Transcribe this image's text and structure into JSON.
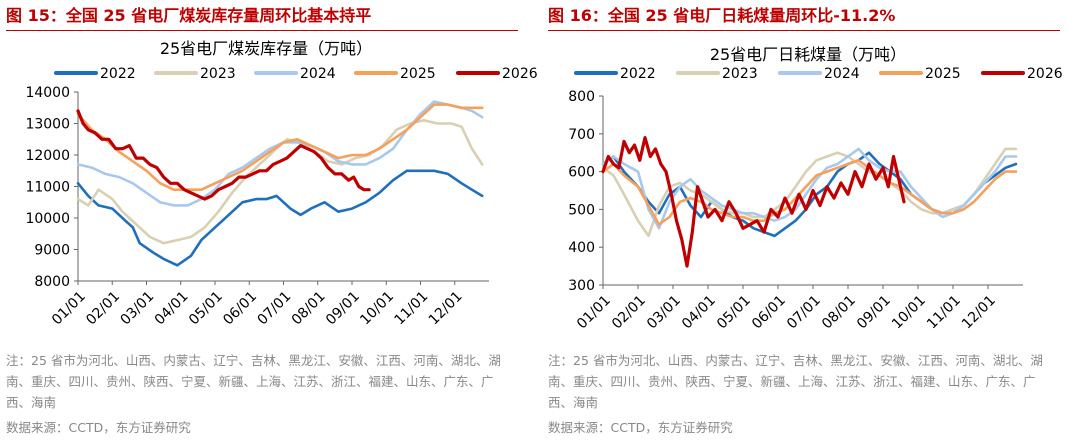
{
  "left": {
    "fig_title": "图 15：全国 25 省电厂煤炭库存量周环比基本持平",
    "note": "注：25 省市为河北、山西、内蒙古、辽宁、吉林、黑龙江、安徽、江西、河南、湖北、湖南、重庆、四川、贵州、陕西、宁夏、新疆、上海、江苏、浙江、福建、山东、广东、广西、海南",
    "source": "数据来源：CCTD，东方证券研究"
  },
  "right": {
    "fig_title": "图 16：全国 25 省电厂日耗煤量周环比-11.2%",
    "note": "注：25 省市为河北、山西、内蒙古、辽宁、吉林、黑龙江、安徽、江西、河南、湖北、湖南、重庆、四川、贵州、陕西、宁夏、新疆、上海、江苏、浙江、福建、山东、广东、广西、海南",
    "source": "数据来源：CCTD，东方证券研究"
  },
  "chart_data": [
    {
      "type": "line",
      "title": "25省电厂煤炭库存量（万吨）",
      "categories": [
        "01/01",
        "02/01",
        "03/01",
        "04/01",
        "05/01",
        "06/01",
        "07/01",
        "08/01",
        "09/01",
        "10/01",
        "11/01",
        "12/01"
      ],
      "ylim": [
        8000,
        14000
      ],
      "yticks": [
        8000,
        9000,
        10000,
        11000,
        12000,
        13000,
        14000
      ],
      "legend_position": "top",
      "series": [
        {
          "name": "2022",
          "color": "#1f6fbf",
          "x": [
            0,
            0.3,
            0.6,
            1,
            1.4,
            1.6,
            1.8,
            2.2,
            2.5,
            2.9,
            3.3,
            3.6,
            4,
            4.4,
            4.8,
            5.2,
            5.5,
            5.8,
            6.2,
            6.5,
            6.8,
            7.2,
            7.6,
            8,
            8.4,
            8.8,
            9.2,
            9.6,
            10,
            10.4,
            10.8,
            11.2,
            11.5,
            11.8
          ],
          "values": [
            11100,
            10700,
            10400,
            10300,
            9900,
            9700,
            9200,
            8900,
            8700,
            8500,
            8800,
            9300,
            9700,
            10100,
            10500,
            10600,
            10600,
            10700,
            10300,
            10100,
            10300,
            10500,
            10200,
            10300,
            10500,
            10800,
            11200,
            11500,
            11500,
            11500,
            11400,
            11100,
            10900,
            10700
          ]
        },
        {
          "name": "2023",
          "color": "#d9cfb2",
          "x": [
            0,
            0.3,
            0.6,
            1,
            1.3,
            1.7,
            2.1,
            2.5,
            2.9,
            3.3,
            3.7,
            4.1,
            4.5,
            4.9,
            5.3,
            5.7,
            6.1,
            6.5,
            6.9,
            7.3,
            7.7,
            8.1,
            8.5,
            8.9,
            9.3,
            9.7,
            10.1,
            10.5,
            10.9,
            11.2,
            11.5,
            11.8
          ],
          "values": [
            10600,
            10400,
            10900,
            10600,
            10200,
            9800,
            9400,
            9200,
            9300,
            9400,
            9700,
            10200,
            10800,
            11300,
            11700,
            12100,
            12500,
            12400,
            12100,
            11800,
            11700,
            11900,
            12000,
            12300,
            12800,
            13000,
            13100,
            13000,
            13000,
            12900,
            12200,
            11700
          ]
        },
        {
          "name": "2024",
          "color": "#a8c8ee",
          "x": [
            0,
            0.4,
            0.8,
            1.2,
            1.6,
            2,
            2.4,
            2.8,
            3.2,
            3.6,
            4,
            4.4,
            4.8,
            5.2,
            5.6,
            6,
            6.4,
            6.8,
            7.2,
            7.6,
            8,
            8.4,
            8.8,
            9.2,
            9.6,
            10,
            10.4,
            10.8,
            11.2,
            11.5,
            11.8
          ],
          "values": [
            11700,
            11600,
            11400,
            11300,
            11100,
            10800,
            10500,
            10400,
            10400,
            10600,
            10900,
            11400,
            11600,
            11900,
            12200,
            12400,
            12400,
            12300,
            12100,
            11800,
            11700,
            11700,
            11900,
            12200,
            12800,
            13300,
            13700,
            13600,
            13500,
            13400,
            13200
          ]
        },
        {
          "name": "2025",
          "color": "#f7a05a",
          "x": [
            0,
            0.4,
            0.8,
            1.2,
            1.6,
            2,
            2.4,
            2.8,
            3.2,
            3.6,
            4,
            4.4,
            4.8,
            5.2,
            5.6,
            6,
            6.4,
            6.8,
            7.2,
            7.6,
            8,
            8.4,
            8.8,
            9.2,
            9.6,
            10,
            10.4,
            10.8,
            11.2,
            11.5,
            11.8
          ],
          "values": [
            13300,
            12800,
            12500,
            12100,
            11800,
            11500,
            11100,
            10900,
            10900,
            10900,
            11100,
            11300,
            11500,
            11800,
            12100,
            12400,
            12500,
            12300,
            12100,
            11900,
            12000,
            12000,
            12200,
            12500,
            12800,
            13200,
            13600,
            13600,
            13500,
            13500,
            13500
          ]
        },
        {
          "name": "2026",
          "color": "#c00000",
          "x": [
            0,
            0.15,
            0.3,
            0.5,
            0.7,
            0.9,
            1.1,
            1.3,
            1.5,
            1.7,
            1.9,
            2.1,
            2.3,
            2.5,
            2.7,
            2.9,
            3.1,
            3.3,
            3.5,
            3.7,
            3.9,
            4.1,
            4.3,
            4.5,
            4.7,
            4.9,
            5.1,
            5.3,
            5.5,
            5.7,
            5.9,
            6.1,
            6.3,
            6.5,
            6.7,
            6.9,
            7.1,
            7.3,
            7.5,
            7.7,
            7.9,
            8.05,
            8.2,
            8.35,
            8.5
          ],
          "values": [
            13400,
            13000,
            12800,
            12700,
            12500,
            12500,
            12200,
            12200,
            12300,
            11900,
            11900,
            11700,
            11600,
            11300,
            11100,
            11100,
            10900,
            10800,
            10700,
            10600,
            10700,
            10900,
            11000,
            11100,
            11300,
            11300,
            11400,
            11500,
            11500,
            11700,
            11800,
            11900,
            12100,
            12300,
            12200,
            12100,
            11900,
            11600,
            11400,
            11400,
            11200,
            11300,
            11000,
            10900,
            10900
          ]
        }
      ]
    },
    {
      "type": "line",
      "title": "25省电厂日耗煤量（万吨）",
      "categories": [
        "01/01",
        "02/01",
        "03/01",
        "04/01",
        "05/01",
        "06/01",
        "07/01",
        "08/01",
        "09/01",
        "10/01",
        "11/01",
        "12/01"
      ],
      "ylim": [
        300,
        800
      ],
      "yticks": [
        300,
        400,
        500,
        600,
        700,
        800
      ],
      "legend_position": "top",
      "series": [
        {
          "name": "2022",
          "color": "#1f6fbf",
          "x": [
            0,
            0.3,
            0.6,
            1,
            1.3,
            1.6,
            1.9,
            2.2,
            2.5,
            2.8,
            3.1,
            3.4,
            3.7,
            4,
            4.3,
            4.6,
            4.9,
            5.2,
            5.5,
            5.8,
            6.1,
            6.4,
            6.7,
            7,
            7.3,
            7.6,
            7.9,
            8.2,
            8.5,
            8.8,
            9.1,
            9.4,
            9.7,
            10,
            10.3,
            10.6,
            10.9,
            11.2,
            11.5,
            11.8
          ],
          "values": [
            620,
            640,
            600,
            560,
            520,
            490,
            540,
            560,
            510,
            480,
            520,
            500,
            480,
            470,
            450,
            440,
            430,
            450,
            470,
            500,
            540,
            560,
            600,
            620,
            630,
            650,
            620,
            600,
            580,
            540,
            520,
            500,
            490,
            500,
            510,
            540,
            570,
            590,
            610,
            620
          ]
        },
        {
          "name": "2023",
          "color": "#d9cfb2",
          "x": [
            0,
            0.3,
            0.6,
            1,
            1.3,
            1.6,
            1.9,
            2.2,
            2.5,
            2.8,
            3.1,
            3.4,
            3.7,
            4,
            4.3,
            4.6,
            4.9,
            5.2,
            5.5,
            5.8,
            6.1,
            6.4,
            6.7,
            7,
            7.3,
            7.6,
            7.9,
            8.2,
            8.5,
            8.8,
            9.1,
            9.4,
            9.7,
            10,
            10.3,
            10.6,
            10.9,
            11.2,
            11.5,
            11.8
          ],
          "values": [
            610,
            590,
            540,
            470,
            430,
            510,
            560,
            570,
            550,
            540,
            520,
            500,
            490,
            490,
            480,
            480,
            500,
            520,
            560,
            600,
            630,
            640,
            650,
            640,
            620,
            600,
            590,
            570,
            550,
            520,
            500,
            490,
            490,
            500,
            510,
            540,
            580,
            620,
            660,
            660
          ]
        },
        {
          "name": "2024",
          "color": "#a8c8ee",
          "x": [
            0,
            0.3,
            0.6,
            1,
            1.3,
            1.6,
            1.9,
            2.2,
            2.5,
            2.8,
            3.1,
            3.4,
            3.7,
            4,
            4.3,
            4.6,
            4.9,
            5.2,
            5.5,
            5.8,
            6.1,
            6.4,
            6.7,
            7,
            7.3,
            7.6,
            7.9,
            8.2,
            8.5,
            8.8,
            9.1,
            9.4,
            9.7,
            10,
            10.3,
            10.6,
            10.9,
            11.2,
            11.5,
            11.8
          ],
          "values": [
            620,
            640,
            620,
            600,
            500,
            450,
            520,
            560,
            580,
            550,
            530,
            510,
            500,
            490,
            490,
            480,
            470,
            480,
            500,
            540,
            580,
            610,
            620,
            640,
            660,
            630,
            610,
            600,
            600,
            560,
            530,
            500,
            480,
            490,
            510,
            540,
            570,
            600,
            640,
            640
          ]
        },
        {
          "name": "2025",
          "color": "#f7a05a",
          "x": [
            0,
            0.3,
            0.6,
            1,
            1.3,
            1.6,
            1.9,
            2.2,
            2.5,
            2.8,
            3.1,
            3.4,
            3.7,
            4,
            4.3,
            4.6,
            4.9,
            5.2,
            5.5,
            5.8,
            6.1,
            6.4,
            6.7,
            7,
            7.3,
            7.6,
            7.9,
            8.2,
            8.5,
            8.8,
            9.1,
            9.4,
            9.7,
            10,
            10.3,
            10.6,
            10.9,
            11.2,
            11.5,
            11.8
          ],
          "values": [
            600,
            620,
            590,
            560,
            510,
            460,
            480,
            520,
            530,
            520,
            500,
            490,
            480,
            480,
            470,
            470,
            490,
            500,
            530,
            560,
            590,
            600,
            610,
            620,
            630,
            610,
            590,
            570,
            560,
            540,
            520,
            500,
            490,
            490,
            500,
            520,
            550,
            580,
            600,
            600
          ]
        },
        {
          "name": "2026",
          "color": "#c00000",
          "x": [
            0,
            0.15,
            0.3,
            0.45,
            0.6,
            0.75,
            0.9,
            1.05,
            1.2,
            1.35,
            1.5,
            1.65,
            1.8,
            1.95,
            2.1,
            2.25,
            2.4,
            2.55,
            2.7,
            2.85,
            3,
            3.2,
            3.4,
            3.6,
            3.8,
            4,
            4.2,
            4.4,
            4.6,
            4.8,
            5,
            5.2,
            5.4,
            5.6,
            5.8,
            6,
            6.2,
            6.4,
            6.6,
            6.8,
            7,
            7.2,
            7.4,
            7.6,
            7.8,
            8,
            8.15,
            8.3,
            8.45,
            8.6
          ],
          "values": [
            600,
            640,
            620,
            610,
            680,
            650,
            670,
            630,
            690,
            640,
            660,
            620,
            600,
            540,
            470,
            420,
            350,
            440,
            560,
            520,
            480,
            500,
            470,
            520,
            490,
            450,
            460,
            470,
            440,
            500,
            480,
            530,
            490,
            540,
            500,
            550,
            510,
            560,
            530,
            570,
            540,
            600,
            560,
            620,
            580,
            610,
            560,
            640,
            580,
            520
          ]
        }
      ]
    }
  ]
}
